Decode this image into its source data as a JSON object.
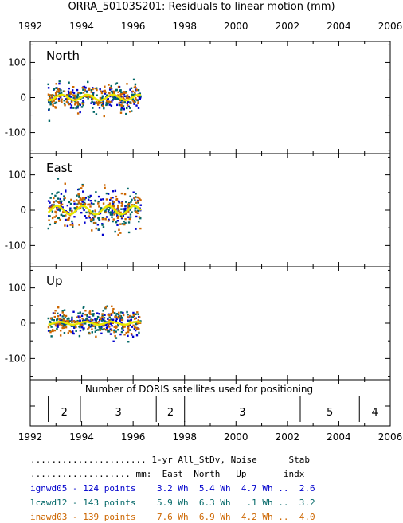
{
  "chart_data": {
    "type": "scatter",
    "title": "ORRA_50103S201: Residuals to linear motion (mm)",
    "x_ticks": [
      "1992",
      "1994",
      "1996",
      "1998",
      "2000",
      "2002",
      "2004",
      "2006"
    ],
    "xlim": [
      1992,
      2006
    ],
    "grid": false,
    "panels": [
      {
        "name": "North",
        "ylim": [
          -160,
          160
        ],
        "y_ticks": [
          "100",
          "0",
          "-100"
        ],
        "y_tick_values": [
          100,
          0,
          -100
        ],
        "data_span": [
          1992.7,
          1996.3
        ],
        "spread": 28,
        "trend": {
          "amplitude": 8,
          "period": 1.0,
          "phase": 0.2
        }
      },
      {
        "name": "East",
        "ylim": [
          -160,
          160
        ],
        "y_ticks": [
          "100",
          "0",
          "-100"
        ],
        "y_tick_values": [
          100,
          0,
          -100
        ],
        "data_span": [
          1992.7,
          1996.3
        ],
        "spread": 42,
        "trend": {
          "amplitude": 12,
          "period": 1.0,
          "phase": 1.3
        }
      },
      {
        "name": "Up",
        "ylim": [
          -160,
          160
        ],
        "y_ticks": [
          "100",
          "0",
          "-100"
        ],
        "y_tick_values": [
          100,
          0,
          -100
        ],
        "data_span": [
          1992.7,
          1996.3
        ],
        "spread": 32,
        "trend": {
          "amplitude": 4,
          "period": 1.0,
          "phase": 0.6
        }
      }
    ],
    "satellites": {
      "label": "Number of DORIS satellites used for positioning",
      "breaks": [
        1992.7,
        1993.95,
        1996.9,
        1998.0,
        2002.5,
        2004.8
      ],
      "segments": [
        {
          "from": 1992.7,
          "to": 1993.95,
          "count": "2"
        },
        {
          "from": 1993.95,
          "to": 1996.9,
          "count": "3"
        },
        {
          "from": 1996.9,
          "to": 1998.0,
          "count": "2"
        },
        {
          "from": 1998.0,
          "to": 2002.5,
          "count": "3"
        },
        {
          "from": 2002.5,
          "to": 2004.8,
          "count": "5"
        },
        {
          "from": 2004.8,
          "to": 2006.0,
          "count": "4"
        }
      ]
    },
    "series": [
      {
        "name": "ignwd05",
        "color": "#0000cc",
        "points": "124"
      },
      {
        "name": "lcawd12",
        "color": "#006666",
        "points": "143"
      },
      {
        "name": "inawd03",
        "color": "#cc6600",
        "points": "139"
      }
    ],
    "trend_color": "#e8e800"
  },
  "stats_table": {
    "header_line1": "...................... 1-yr All_StDv, Noise      Stab",
    "header_line2": "................... mm:  East  North   Up       indx",
    "rows": [
      {
        "text": "ignwd05 - 124 points    3.2 Wh  5.4 Wh  4.7 Wh ..  2.6",
        "color": "#0000cc"
      },
      {
        "text": "lcawd12 - 143 points    5.9 Wh  6.3 Wh   .1 Wh ..  3.2",
        "color": "#006666"
      },
      {
        "text": "inawd03 - 139 points    7.6 Wh  6.9 Wh  4.2 Wh ..  4.0",
        "color": "#cc6600"
      }
    ]
  }
}
